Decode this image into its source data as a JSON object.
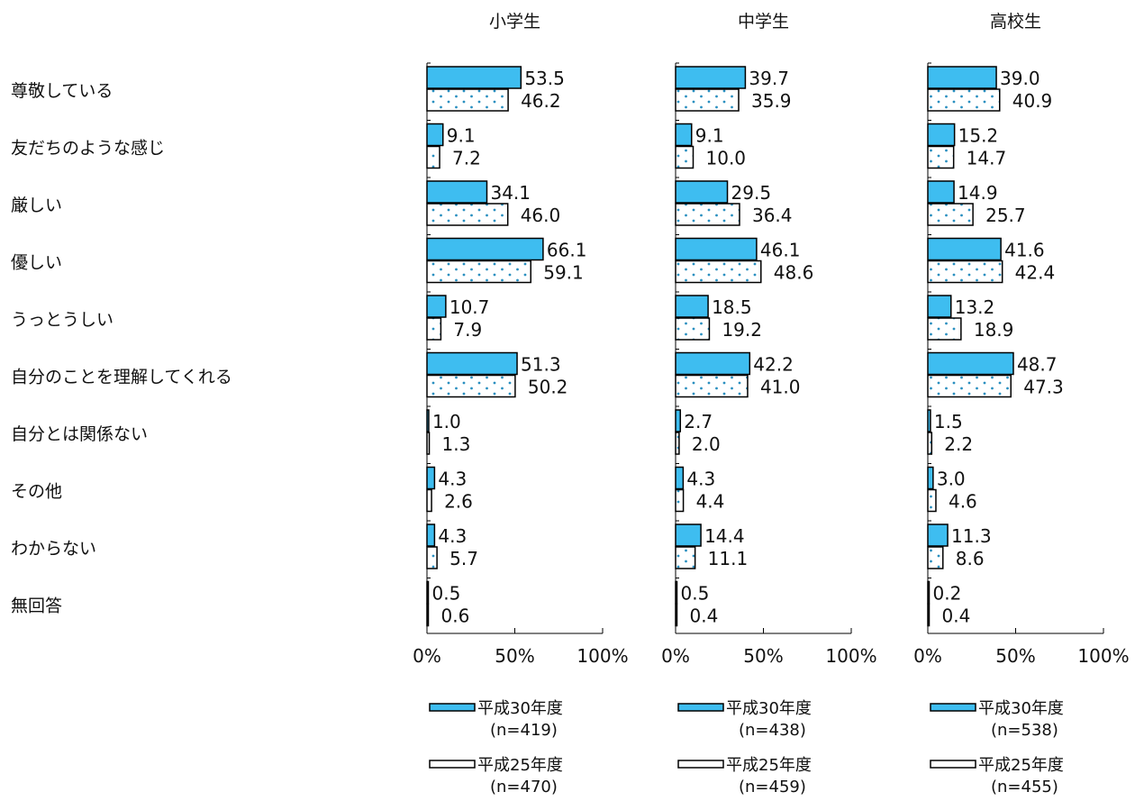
{
  "chart_data": {
    "type": "bar",
    "orientation": "horizontal",
    "categories": [
      "尊敬している",
      "友だちのような感じ",
      "厳しい",
      "優しい",
      "うっとうしい",
      "自分のことを理解してくれる",
      "自分とは関係ない",
      "その他",
      "わからない",
      "無回答"
    ],
    "xlim": [
      0,
      100
    ],
    "xticks": [
      "0%",
      "50%",
      "100%"
    ],
    "colors": {
      "series1": "#3ebdf0",
      "series2": "#ffffff",
      "dots": "#2a8fc0",
      "outline": "#000000"
    },
    "panels": [
      {
        "title": "小学生",
        "series": [
          {
            "name": "平成30年度",
            "n": "(n=419)",
            "values": [
              53.5,
              9.1,
              34.1,
              66.1,
              10.7,
              51.3,
              1.0,
              4.3,
              4.3,
              0.5
            ],
            "labels": [
              "53.5",
              "9.1",
              "34.1",
              "66.1",
              "10.7",
              "51.3",
              "1.0",
              "4.3",
              "4.3",
              "0.5"
            ]
          },
          {
            "name": "平成25年度",
            "n": "(n=470)",
            "values": [
              46.2,
              7.2,
              46.0,
              59.1,
              7.9,
              50.2,
              1.3,
              2.6,
              5.7,
              0.6
            ],
            "labels": [
              "46.2",
              "7.2",
              "46.0",
              "59.1",
              "7.9",
              "50.2",
              "1.3",
              "2.6",
              "5.7",
              "0.6"
            ]
          }
        ]
      },
      {
        "title": "中学生",
        "series": [
          {
            "name": "平成30年度",
            "n": "(n=438)",
            "values": [
              39.7,
              9.1,
              29.5,
              46.1,
              18.5,
              42.2,
              2.7,
              4.3,
              14.4,
              0.5
            ],
            "labels": [
              "39.7",
              "9.1",
              "29.5",
              "46.1",
              "18.5",
              "42.2",
              "2.7",
              "4.3",
              "14.4",
              "0.5"
            ]
          },
          {
            "name": "平成25年度",
            "n": "(n=459)",
            "values": [
              35.9,
              10.0,
              36.4,
              48.6,
              19.2,
              41.0,
              2.0,
              4.4,
              11.1,
              0.4
            ],
            "labels": [
              "35.9",
              "10.0",
              "36.4",
              "48.6",
              "19.2",
              "41.0",
              "2.0",
              "4.4",
              "11.1",
              "0.4"
            ]
          }
        ]
      },
      {
        "title": "高校生",
        "series": [
          {
            "name": "平成30年度",
            "n": "(n=538)",
            "values": [
              39.0,
              15.2,
              14.9,
              41.6,
              13.2,
              48.7,
              1.5,
              3.0,
              11.3,
              0.2
            ],
            "labels": [
              "39.0",
              "15.2",
              "14.9",
              "41.6",
              "13.2",
              "48.7",
              "1.5",
              "3.0",
              "11.3",
              "0.2"
            ]
          },
          {
            "name": "平成25年度",
            "n": "(n=455)",
            "values": [
              40.9,
              14.7,
              25.7,
              42.4,
              18.9,
              47.3,
              2.2,
              4.6,
              8.6,
              0.4
            ],
            "labels": [
              "40.9",
              "14.7",
              "25.7",
              "42.4",
              "18.9",
              "47.3",
              "2.2",
              "4.6",
              "8.6",
              "0.4"
            ]
          }
        ]
      }
    ]
  }
}
